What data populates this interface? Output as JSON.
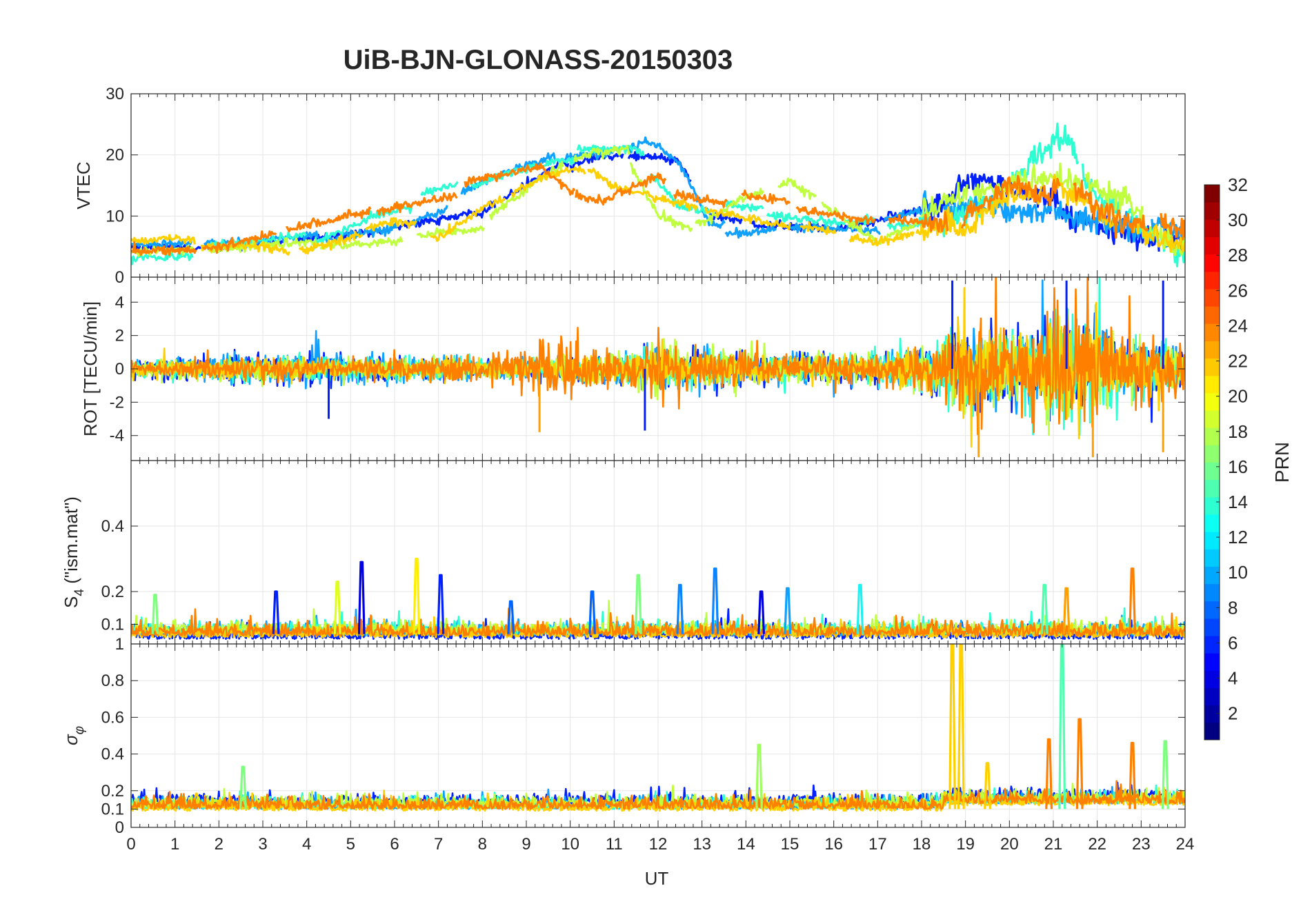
{
  "chart_data": {
    "type": "line",
    "title": "UiB-BJN-GLONASS-20150303",
    "xlabel": "UT",
    "xlim": [
      0,
      24
    ],
    "x_ticks": [
      0,
      1,
      2,
      3,
      4,
      5,
      6,
      7,
      8,
      9,
      10,
      11,
      12,
      13,
      14,
      15,
      16,
      17,
      18,
      19,
      20,
      21,
      22,
      23,
      24
    ],
    "x_tick_labels": [
      "0",
      "1",
      "2",
      "3",
      "4",
      "5",
      "6",
      "7",
      "8",
      "9",
      "10",
      "11",
      "12",
      "13",
      "14",
      "15",
      "16",
      "17",
      "18",
      "19",
      "20",
      "21",
      "22",
      "23",
      "24"
    ],
    "grid": true,
    "panels": [
      {
        "id": "vtec",
        "ylabel": "VTEC",
        "ylim": [
          0,
          30
        ],
        "y_ticks": [
          0,
          10,
          20,
          30
        ],
        "y_tick_labels": [
          "0",
          "10",
          "20",
          "30"
        ],
        "series_trends": [
          {
            "prn": 6,
            "x": [
              0,
              2,
              4,
              6,
              8,
              9.5,
              10.5,
              11.8,
              12.5,
              13.2,
              14,
              16,
              18.5,
              19,
              21,
              22,
              24
            ],
            "y": [
              5,
              5,
              6,
              7.5,
              10,
              17,
              20.5,
              21,
              20,
              10,
              9,
              8.5,
              12,
              16,
              12,
              10,
              6
            ]
          },
          {
            "prn": 10,
            "x": [
              0,
              2,
              4,
              6,
              7.5,
              8.5,
              9.5,
              11,
              11.8,
              12.5,
              13.2,
              15,
              17,
              19,
              21,
              22.5,
              24
            ],
            "y": [
              4.5,
              5,
              6,
              8.5,
              13,
              16,
              18.5,
              19.5,
              22,
              18,
              8,
              9,
              8.5,
              12,
              11,
              9,
              6
            ]
          },
          {
            "prn": 14,
            "x": [
              0,
              2,
              4,
              5.5,
              7,
              8.5,
              9.5,
              10.5,
              11.5,
              12.5,
              14,
              16,
              18.5,
              20,
              21.2,
              22,
              24
            ],
            "y": [
              4,
              4.5,
              6,
              11,
              13.5,
              17,
              19,
              20,
              20,
              12,
              10.5,
              9,
              10,
              15,
              23,
              14,
              5
            ]
          },
          {
            "prn": 18,
            "x": [
              0,
              2,
              4,
              6,
              8,
              9.5,
              10.5,
              11.3,
              12,
              13,
              14,
              15,
              16,
              17,
              19,
              21,
              22.5,
              24
            ],
            "y": [
              4,
              5,
              6,
              7,
              9,
              17,
              20,
              20.5,
              11,
              8.5,
              13,
              15,
              11,
              6,
              13,
              16,
              12,
              5
            ]
          },
          {
            "prn": 21,
            "x": [
              0,
              3,
              4,
              6,
              7,
              8,
              9,
              9.5,
              10.2,
              11,
              12,
              17,
              19,
              20,
              21,
              22,
              24
            ],
            "y": [
              5,
              5.5,
              4,
              8,
              7,
              12,
              15,
              17,
              18,
              14,
              12,
              5,
              9,
              14,
              15,
              10,
              6
            ]
          },
          {
            "prn": 24,
            "x": [
              0,
              1,
              2,
              9.3,
              10,
              10.8,
              11.3,
              12,
              12.8,
              18.5,
              19.2,
              20,
              20.8,
              21.3,
              22,
              22.8,
              24
            ],
            "y": [
              5,
              5,
              5.5,
              17,
              13,
              12,
              14,
              16,
              14,
              8,
              12,
              16,
              14,
              16.5,
              12,
              9,
              7
            ]
          }
        ]
      },
      {
        "id": "rot",
        "ylabel": "ROT [TECU/min]",
        "ylim": [
          -5.5,
          5.5
        ],
        "y_ticks": [
          -4,
          -2,
          0,
          2,
          4
        ],
        "y_tick_labels": [
          "-4",
          "-2",
          "0",
          "2",
          "4"
        ],
        "series_trends": [
          {
            "prn": 6,
            "baseline": 0,
            "noise_amp_by_hour": [
              0.5,
              0.6,
              0.8,
              0.8,
              0.9,
              0.8,
              0.6,
              0.5,
              0.5,
              0.6,
              0.7,
              0.7,
              0.8,
              0.9,
              0.9,
              0.7,
              0.8,
              0.9,
              1.2,
              2.5,
              2.0,
              2.8,
              2.2,
              1.5,
              1.5
            ]
          },
          {
            "prn": 10,
            "baseline": 0,
            "noise_amp_by_hour": [
              0.4,
              0.5,
              0.7,
              0.7,
              1.2,
              0.8,
              0.7,
              0.6,
              0.5,
              0.6,
              0.7,
              0.8,
              1.2,
              0.9,
              0.8,
              0.7,
              0.7,
              0.8,
              1.0,
              2.0,
              1.8,
              2.5,
              2.0,
              1.5,
              1.2
            ]
          },
          {
            "prn": 14,
            "baseline": 0,
            "noise_amp_by_hour": [
              0.4,
              0.5,
              0.6,
              0.6,
              0.6,
              0.6,
              0.7,
              0.6,
              0.5,
              0.6,
              0.6,
              0.7,
              1.2,
              1.0,
              0.9,
              0.8,
              0.8,
              0.8,
              1.2,
              2.5,
              2.0,
              3.5,
              2.5,
              1.5,
              1.2
            ]
          },
          {
            "prn": 18,
            "baseline": 0,
            "noise_amp_by_hour": [
              0.5,
              0.5,
              0.6,
              0.6,
              0.6,
              0.6,
              0.6,
              0.6,
              0.5,
              0.6,
              0.6,
              0.7,
              1.5,
              1.0,
              1.0,
              0.8,
              0.8,
              0.8,
              1.0,
              2.0,
              1.8,
              2.2,
              2.0,
              1.5,
              1.2
            ]
          },
          {
            "prn": 21,
            "baseline": 0,
            "noise_amp_by_hour": [
              0.4,
              0.5,
              0.5,
              0.5,
              0.5,
              0.5,
              0.5,
              0.5,
              0.5,
              0.6,
              0.7,
              0.7,
              0.8,
              0.8,
              0.8,
              0.7,
              0.7,
              0.8,
              1.2,
              3.0,
              2.0,
              2.5,
              2.2,
              1.5,
              1.2
            ]
          },
          {
            "prn": 24,
            "baseline": 0,
            "noise_amp_by_hour": [
              0.4,
              0.4,
              0.6,
              0.5,
              0.5,
              0.5,
              0.6,
              0.6,
              0.7,
              1.5,
              1.8,
              1.0,
              1.5,
              1.0,
              0.8,
              0.8,
              0.8,
              0.8,
              1.2,
              2.5,
              2.2,
              3.5,
              2.5,
              2.0,
              1.5
            ]
          }
        ],
        "notable_spikes": [
          {
            "x": 18.7,
            "y": 5.3
          },
          {
            "x": 19.3,
            "y": -5.3
          },
          {
            "x": 21.3,
            "y": 5.3
          },
          {
            "x": 21.9,
            "y": -5.3
          },
          {
            "x": 23.5,
            "y": 5.3
          },
          {
            "x": 23.5,
            "y": -5.0
          },
          {
            "x": 4.5,
            "y": -3.0
          },
          {
            "x": 9.3,
            "y": -3.8
          },
          {
            "x": 11.7,
            "y": -3.7
          }
        ]
      },
      {
        "id": "s4",
        "ylabel": "S4 (\"ism.mat\")",
        "ylabel_main": "S",
        "ylabel_sub": "4",
        "ylabel_rest": " (\"ism.mat\")",
        "ylim": [
          0.04,
          0.6
        ],
        "y_ticks": [
          0.1,
          0.2,
          0.4
        ],
        "y_tick_labels": [
          "0.1",
          "0.2",
          "0.4"
        ],
        "baseline_by_prn": [
          {
            "prn": 6,
            "base": 0.055
          },
          {
            "prn": 10,
            "base": 0.065
          },
          {
            "prn": 14,
            "base": 0.07
          },
          {
            "prn": 18,
            "base": 0.07
          },
          {
            "prn": 21,
            "base": 0.06
          },
          {
            "prn": 24,
            "base": 0.065
          }
        ],
        "notable_peaks": [
          {
            "x": 0.55,
            "y": 0.19,
            "prn": 16
          },
          {
            "x": 3.3,
            "y": 0.2,
            "prn": 6
          },
          {
            "x": 4.7,
            "y": 0.23,
            "prn": 19
          },
          {
            "x": 5.25,
            "y": 0.29,
            "prn": 4
          },
          {
            "x": 6.5,
            "y": 0.3,
            "prn": 20
          },
          {
            "x": 7.05,
            "y": 0.25,
            "prn": 6
          },
          {
            "x": 8.65,
            "y": 0.17,
            "prn": 8
          },
          {
            "x": 10.5,
            "y": 0.2,
            "prn": 8
          },
          {
            "x": 11.55,
            "y": 0.25,
            "prn": 16
          },
          {
            "x": 12.5,
            "y": 0.22,
            "prn": 9
          },
          {
            "x": 13.3,
            "y": 0.27,
            "prn": 9
          },
          {
            "x": 14.35,
            "y": 0.2,
            "prn": 4
          },
          {
            "x": 14.95,
            "y": 0.21,
            "prn": 10
          },
          {
            "x": 16.6,
            "y": 0.22,
            "prn": 13
          },
          {
            "x": 20.8,
            "y": 0.22,
            "prn": 15
          },
          {
            "x": 21.3,
            "y": 0.21,
            "prn": 23
          },
          {
            "x": 22.8,
            "y": 0.27,
            "prn": 24
          }
        ]
      },
      {
        "id": "sigma_phi",
        "ylabel": "σφ",
        "ylabel_main": "σ",
        "ylabel_sub": "φ",
        "ylim": [
          0,
          1
        ],
        "y_ticks": [
          0,
          0.1,
          0.2,
          0.4,
          0.6,
          0.8,
          1
        ],
        "y_tick_labels": [
          "0",
          "0.1",
          "0.2",
          "0.4",
          "0.6",
          "0.8",
          "1"
        ],
        "baseline_by_prn": [
          {
            "prn": 6,
            "base": 0.12
          },
          {
            "prn": 10,
            "base": 0.1
          },
          {
            "prn": 14,
            "base": 0.1
          },
          {
            "prn": 18,
            "base": 0.11
          },
          {
            "prn": 21,
            "base": 0.09
          },
          {
            "prn": 24,
            "base": 0.1
          }
        ],
        "notable_peaks": [
          {
            "x": 2.55,
            "y": 0.33,
            "prn": 16
          },
          {
            "x": 14.3,
            "y": 0.45,
            "prn": 17
          },
          {
            "x": 18.7,
            "y": 1.0,
            "prn": 21
          },
          {
            "x": 18.9,
            "y": 1.0,
            "prn": 21
          },
          {
            "x": 19.5,
            "y": 0.35,
            "prn": 21
          },
          {
            "x": 20.9,
            "y": 0.48,
            "prn": 24
          },
          {
            "x": 21.2,
            "y": 1.0,
            "prn": 15
          },
          {
            "x": 21.6,
            "y": 0.59,
            "prn": 24
          },
          {
            "x": 22.8,
            "y": 0.46,
            "prn": 24
          },
          {
            "x": 23.55,
            "y": 0.47,
            "prn": 16
          }
        ]
      }
    ],
    "colorbar": {
      "label": "PRN",
      "colormap": "jet",
      "range": [
        1,
        32
      ],
      "ticks": [
        2,
        4,
        6,
        8,
        10,
        12,
        14,
        16,
        18,
        20,
        22,
        24,
        26,
        28,
        30,
        32
      ],
      "tick_labels": [
        "2",
        "4",
        "6",
        "8",
        "10",
        "12",
        "14",
        "16",
        "18",
        "20",
        "22",
        "24",
        "26",
        "28",
        "30",
        "32"
      ],
      "levels": 32
    },
    "prn_colors": {
      "4": "#0000E0",
      "6": "#0020FF",
      "8": "#0064FF",
      "9": "#0A84FF",
      "10": "#10A0FF",
      "13": "#20F0F0",
      "15": "#50FFB0",
      "16": "#7FFF80",
      "17": "#9FFF60",
      "18": "#BFFF40",
      "19": "#DFFF20",
      "20": "#FFEE00",
      "21": "#FFD000",
      "23": "#FFA000",
      "24": "#FF8000"
    }
  }
}
